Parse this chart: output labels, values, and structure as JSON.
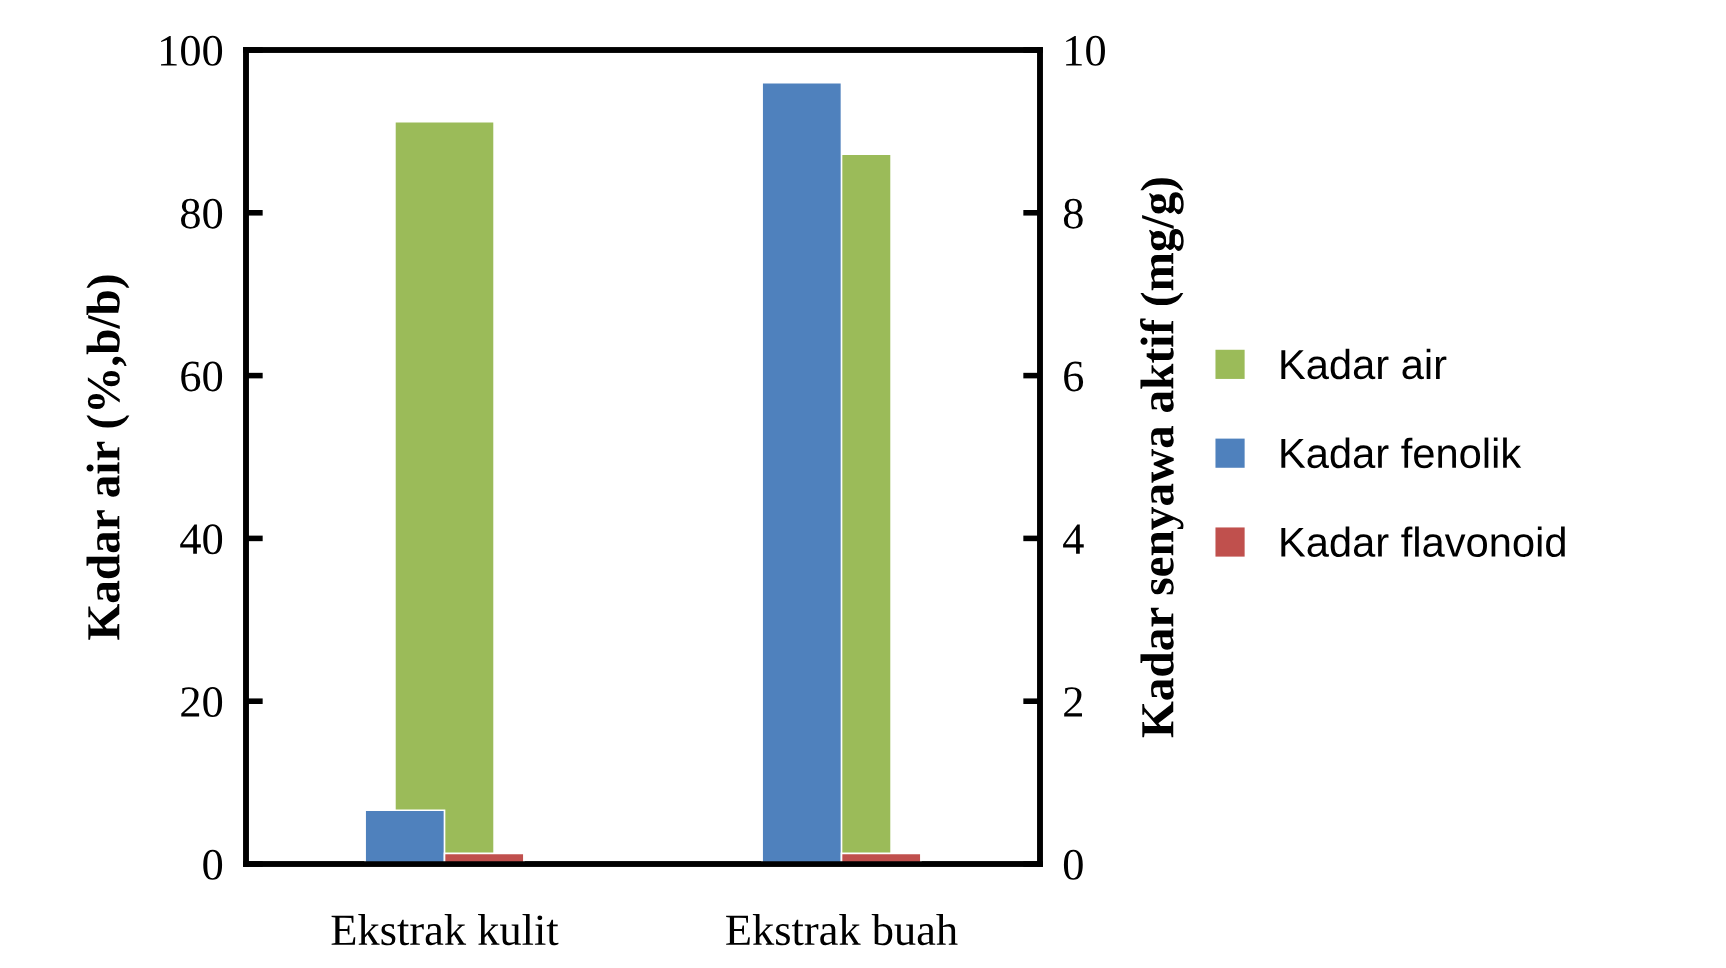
{
  "chart_data": {
    "type": "bar",
    "categories": [
      "Ekstrak kulit",
      "Ekstrak buah"
    ],
    "series": [
      {
        "name": "Kadar air",
        "color": "#9bbb59",
        "values": [
          91.2,
          87.2
        ]
      },
      {
        "name": "Kadar fenolik",
        "color": "#4f81bd",
        "values": [
          0.66,
          9.6
        ],
        "axis": "y2"
      },
      {
        "name": "Kadar flavonoid",
        "color": "#c0504d",
        "values": [
          0.13,
          0.13
        ],
        "axis": "y2"
      }
    ],
    "ylabel": "Kadar air (%,b/b)",
    "y2label": "Kadar senyawa aktif (mg/g)",
    "ylim": [
      0,
      100
    ],
    "yticks": [
      0,
      20,
      40,
      60,
      80,
      100
    ],
    "y2lim": [
      0,
      10
    ],
    "y2ticks": [
      0,
      2,
      4,
      6,
      8,
      10
    ],
    "grid": false,
    "legend": "right"
  }
}
